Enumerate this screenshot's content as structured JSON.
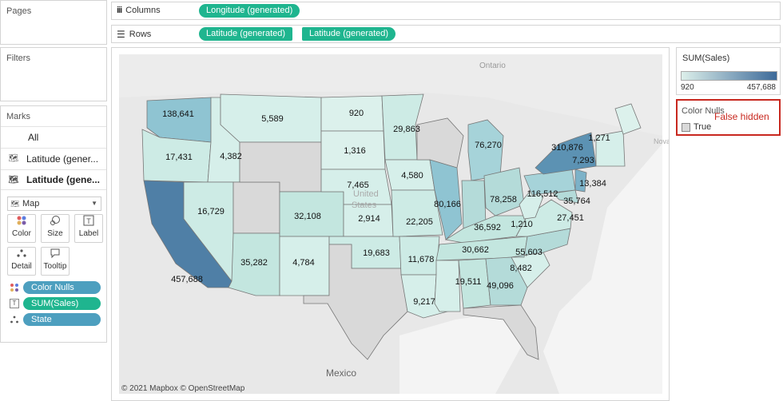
{
  "pages": {
    "title": "Pages"
  },
  "filters": {
    "title": "Filters"
  },
  "columns": {
    "label": "Columns",
    "pills": [
      "Longitude (generated)"
    ]
  },
  "rows": {
    "label": "Rows",
    "pills": [
      "Latitude (generated)",
      "Latitude (generated)"
    ]
  },
  "marks": {
    "title": "Marks",
    "tabs": [
      "All",
      "Latitude (gener...",
      "Latitude (gene..."
    ],
    "mark_type": "Map",
    "buttons": [
      "Color",
      "Size",
      "Label",
      "Detail",
      "Tooltip"
    ],
    "fields": [
      {
        "label": "Color Nulls",
        "color": "#4d9fbf",
        "icon": "color-dots-icon"
      },
      {
        "label": "SUM(Sales)",
        "color": "#1fb58f",
        "icon": "label-T-icon"
      },
      {
        "label": "State",
        "color": "#4d9fbf",
        "icon": "detail-dots-icon"
      }
    ]
  },
  "sales_legend": {
    "title": "SUM(Sales)",
    "min": "920",
    "max": "457,688",
    "color_low": "#dcefea",
    "color_high": "#3d6a99"
  },
  "nulls_legend": {
    "title": "Color Nulls",
    "item": "True",
    "annotation": "False hidden",
    "annotation_color": "#c8281f"
  },
  "map": {
    "credit": "© 2021 Mapbox © OpenStreetMap",
    "place_labels": {
      "ontario": "Ontario",
      "united": "United",
      "states": "States",
      "mexico": "Mexico",
      "nova": "Nova"
    },
    "state_values": [
      "138,641",
      "5,589",
      "920",
      "29,863",
      "17,431",
      "4,382",
      "1,316",
      "76,270",
      "1,271",
      "7,293",
      "310,876",
      "13,384",
      "4,580",
      "7,465",
      "80,166",
      "78,258",
      "116,512",
      "16,729",
      "32,108",
      "2,914",
      "22,205",
      "36,592",
      "1,210",
      "35,764",
      "27,451",
      "457,688",
      "19,683",
      "11,678",
      "30,662",
      "55,603",
      "35,282",
      "4,784",
      "8,482",
      "19,511",
      "49,096",
      "9,217"
    ]
  }
}
